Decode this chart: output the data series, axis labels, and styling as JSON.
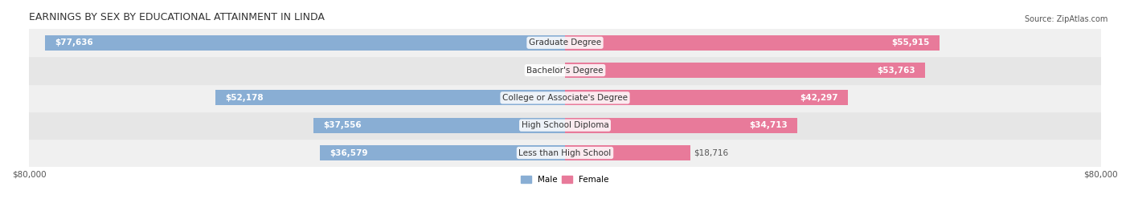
{
  "title": "EARNINGS BY SEX BY EDUCATIONAL ATTAINMENT IN LINDA",
  "source": "Source: ZipAtlas.com",
  "categories": [
    "Less than High School",
    "High School Diploma",
    "College or Associate's Degree",
    "Bachelor's Degree",
    "Graduate Degree"
  ],
  "male_values": [
    36579,
    37556,
    52178,
    0,
    77636
  ],
  "female_values": [
    18716,
    34713,
    42297,
    53763,
    55915
  ],
  "male_color": "#89aed4",
  "female_color": "#e87a9a",
  "bar_bg_color": "#e8e8e8",
  "row_bg_colors": [
    "#f5f5f5",
    "#ebebeb"
  ],
  "x_max": 80000,
  "x_tick_label": "$80,000",
  "bar_height": 0.55,
  "title_fontsize": 9,
  "label_fontsize": 7.5,
  "tick_fontsize": 7.5,
  "source_fontsize": 7
}
